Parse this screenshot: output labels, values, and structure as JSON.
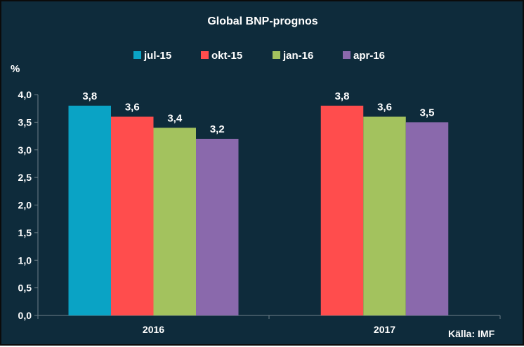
{
  "chart_data": {
    "type": "bar",
    "title": "Global BNP-prognos",
    "ylabel": "%",
    "source": "Källa: IMF",
    "categories": [
      "2016",
      "2017"
    ],
    "ylim": [
      0,
      4.0
    ],
    "yticks": [
      "0,0",
      "0,5",
      "1,0",
      "1,5",
      "2,0",
      "2,5",
      "3,0",
      "3,5",
      "4,0"
    ],
    "grid": false,
    "legend_position": "top",
    "series": [
      {
        "name": "jul-15",
        "color": "#0aa3c5",
        "values": [
          3.8,
          null
        ],
        "labels": [
          "3,8",
          ""
        ]
      },
      {
        "name": "okt-15",
        "color": "#ff4d4d",
        "values": [
          3.6,
          3.8
        ],
        "labels": [
          "3,6",
          "3,8"
        ]
      },
      {
        "name": "jan-16",
        "color": "#a3c25e",
        "values": [
          3.4,
          3.6
        ],
        "labels": [
          "3,4",
          "3,6"
        ]
      },
      {
        "name": "apr-16",
        "color": "#8a69ac",
        "values": [
          3.2,
          3.5
        ],
        "labels": [
          "3,2",
          "3,5"
        ]
      }
    ]
  }
}
